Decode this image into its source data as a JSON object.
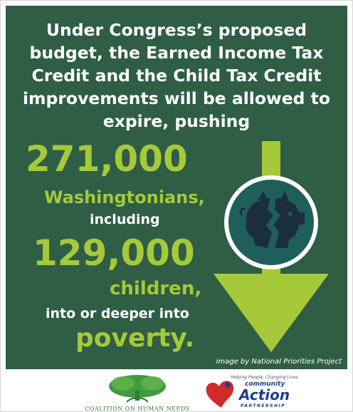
{
  "infographic": {
    "headline": "Under Congress’s proposed budget, the Earned Income Tax Credit and the Child Tax Credit improvements will be allowed to expire, pushing",
    "figure1": "271,000",
    "group1": "Washingtonians,",
    "connector": "including",
    "figure2": "129,000",
    "group2": "children,",
    "outcome_lead": "into or deeper into",
    "outcome": "poverty.",
    "credit": "image by National Priorities Project",
    "icon": "broken-piggy-bank-icon"
  },
  "colors": {
    "panel": "#2f5e45",
    "accent": "#a6c93a",
    "circle": "#1f5f5a",
    "piggy": "#1b2e40",
    "white": "#ffffff"
  },
  "logos": {
    "coalition": "COALITION ON HUMAN NEEDS",
    "cap_tagline": "Helping People. Changing Lives.",
    "cap_community": "community",
    "cap_action": "Action",
    "cap_partnership": "PARTNERSHIP"
  }
}
